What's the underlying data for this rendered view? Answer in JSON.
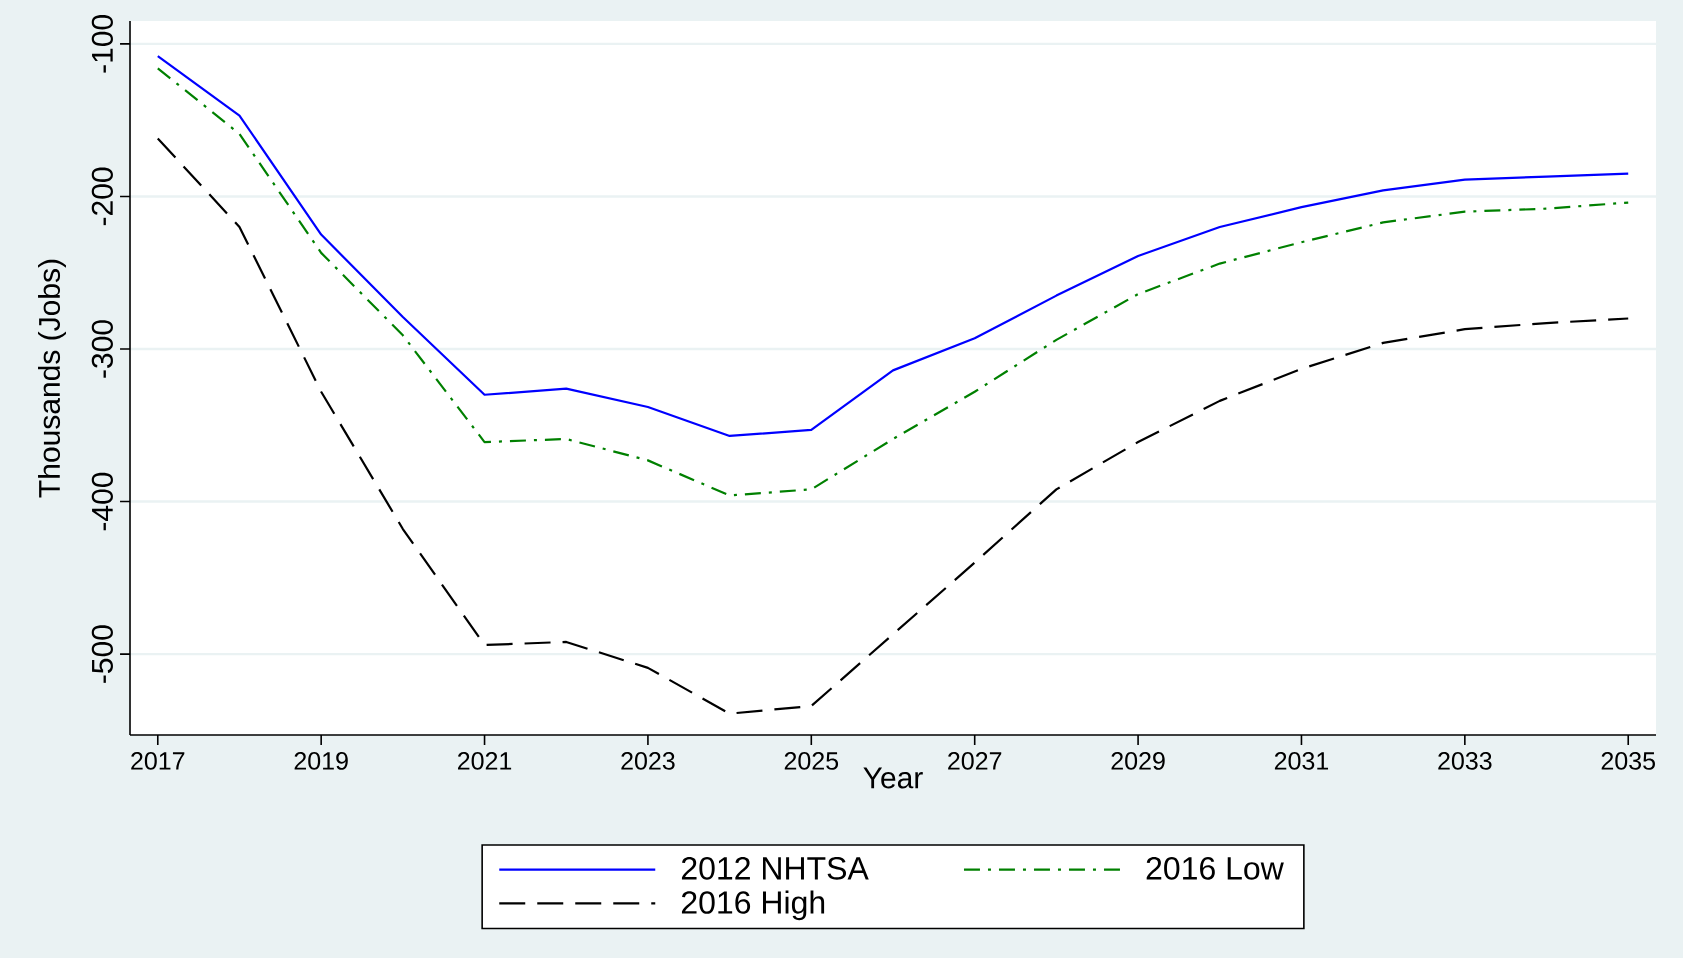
{
  "chart_data": {
    "type": "line",
    "xlabel": "Year",
    "ylabel": "Thousands (Jobs)",
    "x": [
      2017,
      2018,
      2019,
      2020,
      2021,
      2022,
      2023,
      2024,
      2025,
      2026,
      2027,
      2028,
      2029,
      2030,
      2031,
      2032,
      2033,
      2034,
      2035
    ],
    "series": [
      {
        "name": "2012 NHTSA",
        "color": "#0000ff",
        "line_style": "solid",
        "values": [
          -108,
          -147,
          -225,
          -279,
          -330,
          -326,
          -338,
          -357,
          -353,
          -314,
          -293,
          -265,
          -239,
          -220,
          -207,
          -196,
          -189,
          -187,
          -185
        ]
      },
      {
        "name": "2016 Low",
        "color": "#008000",
        "line_style": "dashdot",
        "values": [
          -116,
          -159,
          -237,
          -291,
          -361,
          -359,
          -373,
          -396,
          -392,
          -359,
          -328,
          -294,
          -264,
          -244,
          -230,
          -217,
          -210,
          -208,
          -204
        ]
      },
      {
        "name": "2016 High",
        "color": "#000000",
        "line_style": "dashed",
        "values": [
          -162,
          -220,
          -328,
          -418,
          -494,
          -492,
          -509,
          -539,
          -534,
          -487,
          -440,
          -392,
          -361,
          -334,
          -313,
          -296,
          -287,
          -283,
          -280
        ]
      }
    ],
    "xlim": [
      2016.66,
      2035.34
    ],
    "ylim": [
      -553,
      -85
    ],
    "xticks": [
      2017,
      2019,
      2021,
      2023,
      2025,
      2027,
      2029,
      2031,
      2033,
      2035
    ],
    "yticks": [
      -500,
      -400,
      -300,
      -200,
      -100
    ],
    "grid": "y",
    "legend": "bottom",
    "marker": "none"
  }
}
